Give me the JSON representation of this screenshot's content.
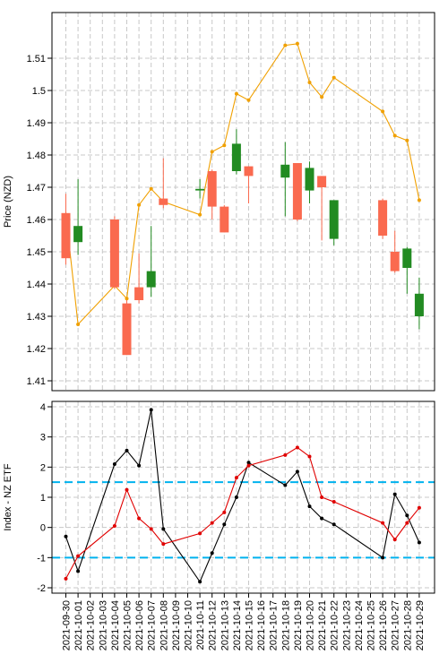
{
  "chart_data": [
    {
      "type": "candlestick",
      "ylabel": "Price (NZD)",
      "ylim": [
        1.41,
        1.515
      ],
      "yticks": [
        1.41,
        1.42,
        1.43,
        1.44,
        1.45,
        1.46,
        1.47,
        1.48,
        1.49,
        1.5,
        1.51
      ],
      "grid": true,
      "up_color": "#228b22",
      "down_color": "#fa6a4f",
      "line_color": "#f0a000",
      "candles": [
        {
          "date": "2021-09-30",
          "open": 1.462,
          "high": 1.468,
          "low": 1.446,
          "close": 1.448
        },
        {
          "date": "2021-10-01",
          "open": 1.453,
          "high": 1.4725,
          "low": 1.449,
          "close": 1.458
        },
        {
          "date": "2021-10-04",
          "open": 1.46,
          "high": 1.461,
          "low": 1.4385,
          "close": 1.439
        },
        {
          "date": "2021-10-05",
          "open": 1.434,
          "high": 1.435,
          "low": 1.418,
          "close": 1.418
        },
        {
          "date": "2021-10-06",
          "open": 1.439,
          "high": 1.4495,
          "low": 1.434,
          "close": 1.435
        },
        {
          "date": "2021-10-07",
          "open": 1.439,
          "high": 1.458,
          "low": 1.436,
          "close": 1.444
        },
        {
          "date": "2021-10-08",
          "open": 1.4665,
          "high": 1.479,
          "low": 1.4635,
          "close": 1.4645
        },
        {
          "date": "2021-10-11",
          "open": 1.469,
          "high": 1.4725,
          "low": 1.4665,
          "close": 1.4695
        },
        {
          "date": "2021-10-12",
          "open": 1.475,
          "high": 1.4755,
          "low": 1.46,
          "close": 1.464
        },
        {
          "date": "2021-10-13",
          "open": 1.464,
          "high": 1.4645,
          "low": 1.456,
          "close": 1.456
        },
        {
          "date": "2021-10-14",
          "open": 1.475,
          "high": 1.488,
          "low": 1.474,
          "close": 1.4835
        },
        {
          "date": "2021-10-15",
          "open": 1.4765,
          "high": 1.4765,
          "low": 1.465,
          "close": 1.4735
        },
        {
          "date": "2021-10-18",
          "open": 1.473,
          "high": 1.484,
          "low": 1.461,
          "close": 1.477
        },
        {
          "date": "2021-10-19",
          "open": 1.4775,
          "high": 1.4775,
          "low": 1.4595,
          "close": 1.46
        },
        {
          "date": "2021-10-20",
          "open": 1.469,
          "high": 1.478,
          "low": 1.465,
          "close": 1.476
        },
        {
          "date": "2021-10-21",
          "open": 1.4735,
          "high": 1.4735,
          "low": 1.4535,
          "close": 1.47
        },
        {
          "date": "2021-10-22",
          "open": 1.454,
          "high": 1.466,
          "low": 1.452,
          "close": 1.466
        },
        {
          "date": "2021-10-26",
          "open": 1.466,
          "high": 1.4665,
          "low": 1.454,
          "close": 1.455
        },
        {
          "date": "2021-10-27",
          "open": 1.45,
          "high": 1.4565,
          "low": 1.4435,
          "close": 1.444
        },
        {
          "date": "2021-10-28",
          "open": 1.445,
          "high": 1.4515,
          "low": 1.437,
          "close": 1.451
        },
        {
          "date": "2021-10-29",
          "open": 1.43,
          "high": 1.442,
          "low": 1.426,
          "close": 1.437
        }
      ],
      "index_line": [
        {
          "date": "2021-09-30",
          "value": 1.4615
        },
        {
          "date": "2021-10-01",
          "value": 1.4275
        },
        {
          "date": "2021-10-04",
          "value": 1.4395
        },
        {
          "date": "2021-10-05",
          "value": 1.4355
        },
        {
          "date": "2021-10-06",
          "value": 1.4645
        },
        {
          "date": "2021-10-07",
          "value": 1.4695
        },
        {
          "date": "2021-10-08",
          "value": 1.4655
        },
        {
          "date": "2021-10-11",
          "value": 1.4615
        },
        {
          "date": "2021-10-12",
          "value": 1.481
        },
        {
          "date": "2021-10-13",
          "value": 1.483
        },
        {
          "date": "2021-10-14",
          "value": 1.499
        },
        {
          "date": "2021-10-15",
          "value": 1.497
        },
        {
          "date": "2021-10-18",
          "value": 1.514
        },
        {
          "date": "2021-10-19",
          "value": 1.5145
        },
        {
          "date": "2021-10-20",
          "value": 1.5025
        },
        {
          "date": "2021-10-21",
          "value": 1.498
        },
        {
          "date": "2021-10-22",
          "value": 1.504
        },
        {
          "date": "2021-10-26",
          "value": 1.4935
        },
        {
          "date": "2021-10-27",
          "value": 1.486
        },
        {
          "date": "2021-10-28",
          "value": 1.4845
        },
        {
          "date": "2021-10-29",
          "value": 1.466
        }
      ]
    },
    {
      "type": "line",
      "ylabel": "Index - NZ ETF",
      "ylim": [
        -2,
        4
      ],
      "yticks": [
        -2,
        -1,
        0,
        1,
        2,
        3,
        4
      ],
      "grid": true,
      "hlines": [
        {
          "value": 1.5,
          "color": "#00b2ee"
        },
        {
          "value": -1,
          "color": "#00b2ee"
        }
      ],
      "series": [
        {
          "color": "#000000",
          "points": [
            {
              "date": "2021-09-30",
              "value": -0.3
            },
            {
              "date": "2021-10-01",
              "value": -1.45
            },
            {
              "date": "2021-10-04",
              "value": 2.1
            },
            {
              "date": "2021-10-05",
              "value": 2.55
            },
            {
              "date": "2021-10-06",
              "value": 2.05
            },
            {
              "date": "2021-10-07",
              "value": 3.9
            },
            {
              "date": "2021-10-08",
              "value": -0.05
            },
            {
              "date": "2021-10-11",
              "value": -1.8
            },
            {
              "date": "2021-10-12",
              "value": -0.85
            },
            {
              "date": "2021-10-13",
              "value": 0.1
            },
            {
              "date": "2021-10-14",
              "value": 1.0
            },
            {
              "date": "2021-10-15",
              "value": 2.15
            },
            {
              "date": "2021-10-18",
              "value": 1.4
            },
            {
              "date": "2021-10-19",
              "value": 1.85
            },
            {
              "date": "2021-10-20",
              "value": 0.7
            },
            {
              "date": "2021-10-21",
              "value": 0.3
            },
            {
              "date": "2021-10-22",
              "value": 0.1
            },
            {
              "date": "2021-10-26",
              "value": -1.0
            },
            {
              "date": "2021-10-27",
              "value": 1.1
            },
            {
              "date": "2021-10-28",
              "value": 0.4
            },
            {
              "date": "2021-10-29",
              "value": -0.5
            }
          ]
        },
        {
          "color": "#e00000",
          "points": [
            {
              "date": "2021-09-30",
              "value": -1.7
            },
            {
              "date": "2021-10-01",
              "value": -0.95
            },
            {
              "date": "2021-10-04",
              "value": 0.05
            },
            {
              "date": "2021-10-05",
              "value": 1.25
            },
            {
              "date": "2021-10-06",
              "value": 0.3
            },
            {
              "date": "2021-10-07",
              "value": -0.05
            },
            {
              "date": "2021-10-08",
              "value": -0.55
            },
            {
              "date": "2021-10-11",
              "value": -0.2
            },
            {
              "date": "2021-10-12",
              "value": 0.15
            },
            {
              "date": "2021-10-13",
              "value": 0.5
            },
            {
              "date": "2021-10-14",
              "value": 1.65
            },
            {
              "date": "2021-10-15",
              "value": 2.05
            },
            {
              "date": "2021-10-18",
              "value": 2.4
            },
            {
              "date": "2021-10-19",
              "value": 2.65
            },
            {
              "date": "2021-10-20",
              "value": 2.35
            },
            {
              "date": "2021-10-21",
              "value": 1.0
            },
            {
              "date": "2021-10-22",
              "value": 0.85
            },
            {
              "date": "2021-10-26",
              "value": 0.15
            },
            {
              "date": "2021-10-27",
              "value": -0.4
            },
            {
              "date": "2021-10-28",
              "value": 0.15
            },
            {
              "date": "2021-10-29",
              "value": 0.65
            }
          ]
        }
      ]
    }
  ],
  "x_axis": {
    "tick_labels": [
      "2021-09-30",
      "2021-10-01",
      "2021-10-02",
      "2021-10-03",
      "2021-10-04",
      "2021-10-05",
      "2021-10-06",
      "2021-10-07",
      "2021-10-08",
      "2021-10-09",
      "2021-10-10",
      "2021-10-11",
      "2021-10-12",
      "2021-10-13",
      "2021-10-14",
      "2021-10-15",
      "2021-10-16",
      "2021-10-17",
      "2021-10-18",
      "2021-10-19",
      "2021-10-20",
      "2021-10-21",
      "2021-10-22",
      "2021-10-23",
      "2021-10-24",
      "2021-10-25",
      "2021-10-26",
      "2021-10-27",
      "2021-10-28",
      "2021-10-29"
    ]
  }
}
